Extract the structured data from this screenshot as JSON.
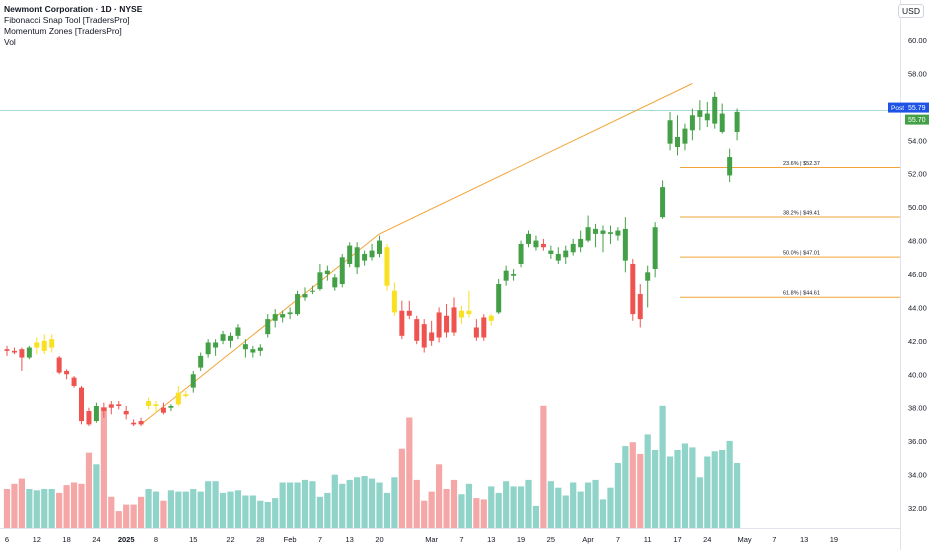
{
  "header": {
    "title": "Newmont Corporation · 1D · NYSE",
    "indicators": [
      "Fibonacci Snap Tool [TradersPro]",
      "Momentum Zones [TradersPro]",
      "Vol"
    ]
  },
  "currency_label": "USD",
  "price_badges": {
    "post_label": "Post",
    "post_value": "55.79",
    "last_value": "55.70"
  },
  "colors": {
    "up": "#43a047",
    "down": "#ef5350",
    "neutral": "#f9e020",
    "vol_up": "#8fd3c9",
    "vol_down": "#f5a6a6",
    "fib_line": "#f2a337",
    "trend_line": "#f2a337",
    "post_line": "#26a69a",
    "post_badge": "#1e53e5"
  },
  "chart_data": {
    "type": "candlestick",
    "title": "Newmont Corporation · 1D · NYSE",
    "y_ticks": [
      "32.00",
      "34.00",
      "36.00",
      "38.00",
      "40.00",
      "42.00",
      "44.00",
      "46.00",
      "48.00",
      "50.00",
      "52.00",
      "54.00",
      "56.00",
      "58.00",
      "60.00"
    ],
    "ylim": [
      30.8,
      61.2
    ],
    "x_ticks": [
      {
        "label": "6",
        "i": 0
      },
      {
        "label": "12",
        "i": 4
      },
      {
        "label": "18",
        "i": 8
      },
      {
        "label": "24",
        "i": 12
      },
      {
        "label": "2025",
        "i": 16
      },
      {
        "label": "8",
        "i": 20
      },
      {
        "label": "15",
        "i": 25
      },
      {
        "label": "22",
        "i": 30
      },
      {
        "label": "28",
        "i": 34
      },
      {
        "label": "Feb",
        "i": 38
      },
      {
        "label": "7",
        "i": 42
      },
      {
        "label": "13",
        "i": 46
      },
      {
        "label": "20",
        "i": 50
      },
      {
        "label": "Mar",
        "i": 57
      },
      {
        "label": "7",
        "i": 61
      },
      {
        "label": "13",
        "i": 65
      },
      {
        "label": "19",
        "i": 69
      },
      {
        "label": "25",
        "i": 73
      },
      {
        "label": "Apr",
        "i": 78
      },
      {
        "label": "7",
        "i": 82
      },
      {
        "label": "11",
        "i": 86
      },
      {
        "label": "17",
        "i": 90
      },
      {
        "label": "24",
        "i": 94
      },
      {
        "label": "May",
        "i": 99
      },
      {
        "label": "7",
        "i": 103
      },
      {
        "label": "13",
        "i": 107
      },
      {
        "label": "19",
        "i": 111
      }
    ],
    "candles": [
      {
        "o": 41.5,
        "h": 41.7,
        "l": 41.1,
        "c": 41.4,
        "t": "down"
      },
      {
        "o": 41.4,
        "h": 41.6,
        "l": 41.2,
        "c": 41.3,
        "t": "down"
      },
      {
        "o": 41.5,
        "h": 41.6,
        "l": 40.2,
        "c": 41.0,
        "t": "down"
      },
      {
        "o": 41.0,
        "h": 41.7,
        "l": 40.9,
        "c": 41.6,
        "t": "up"
      },
      {
        "o": 41.6,
        "h": 42.2,
        "l": 41.2,
        "c": 41.9,
        "t": "neutral"
      },
      {
        "o": 41.4,
        "h": 42.4,
        "l": 41.2,
        "c": 42.0,
        "t": "neutral"
      },
      {
        "o": 41.6,
        "h": 42.4,
        "l": 41.3,
        "c": 42.1,
        "t": "neutral"
      },
      {
        "o": 41.0,
        "h": 41.1,
        "l": 40.0,
        "c": 40.1,
        "t": "down"
      },
      {
        "o": 40.2,
        "h": 40.3,
        "l": 39.7,
        "c": 40.0,
        "t": "down"
      },
      {
        "o": 39.8,
        "h": 39.9,
        "l": 39.2,
        "c": 39.3,
        "t": "down"
      },
      {
        "o": 39.2,
        "h": 39.3,
        "l": 37.0,
        "c": 37.2,
        "t": "down"
      },
      {
        "o": 37.8,
        "h": 38.0,
        "l": 36.9,
        "c": 37.0,
        "t": "down"
      },
      {
        "o": 37.2,
        "h": 38.3,
        "l": 37.1,
        "c": 38.1,
        "t": "up"
      },
      {
        "o": 38.0,
        "h": 38.3,
        "l": 37.4,
        "c": 37.8,
        "t": "down"
      },
      {
        "o": 38.2,
        "h": 38.4,
        "l": 37.6,
        "c": 38.0,
        "t": "down"
      },
      {
        "o": 38.2,
        "h": 38.4,
        "l": 37.9,
        "c": 38.1,
        "t": "down"
      },
      {
        "o": 37.8,
        "h": 38.1,
        "l": 37.3,
        "c": 37.6,
        "t": "down"
      },
      {
        "o": 37.1,
        "h": 37.3,
        "l": 36.9,
        "c": 37.0,
        "t": "down"
      },
      {
        "o": 37.0,
        "h": 37.4,
        "l": 36.9,
        "c": 37.2,
        "t": "down"
      },
      {
        "o": 38.1,
        "h": 38.6,
        "l": 37.9,
        "c": 38.4,
        "t": "neutral"
      },
      {
        "o": 38.1,
        "h": 38.4,
        "l": 37.7,
        "c": 38.2,
        "t": "neutral"
      },
      {
        "o": 38.0,
        "h": 38.3,
        "l": 37.6,
        "c": 37.7,
        "t": "down"
      },
      {
        "o": 38.0,
        "h": 38.2,
        "l": 37.8,
        "c": 38.1,
        "t": "up"
      },
      {
        "o": 38.2,
        "h": 39.3,
        "l": 38.1,
        "c": 38.9,
        "t": "neutral"
      },
      {
        "o": 38.7,
        "h": 39.0,
        "l": 38.6,
        "c": 38.8,
        "t": "neutral"
      },
      {
        "o": 39.2,
        "h": 40.2,
        "l": 38.9,
        "c": 40.0,
        "t": "up"
      },
      {
        "o": 40.4,
        "h": 41.3,
        "l": 40.2,
        "c": 41.1,
        "t": "up"
      },
      {
        "o": 41.2,
        "h": 42.1,
        "l": 41.0,
        "c": 41.9,
        "t": "up"
      },
      {
        "o": 41.6,
        "h": 42.1,
        "l": 41.1,
        "c": 41.9,
        "t": "up"
      },
      {
        "o": 42.0,
        "h": 42.6,
        "l": 41.8,
        "c": 42.4,
        "t": "up"
      },
      {
        "o": 42.0,
        "h": 42.5,
        "l": 41.6,
        "c": 42.3,
        "t": "up"
      },
      {
        "o": 42.3,
        "h": 43.0,
        "l": 42.1,
        "c": 42.8,
        "t": "up"
      },
      {
        "o": 41.8,
        "h": 42.1,
        "l": 41.0,
        "c": 41.5,
        "t": "up"
      },
      {
        "o": 41.3,
        "h": 41.7,
        "l": 41.0,
        "c": 41.5,
        "t": "up"
      },
      {
        "o": 41.4,
        "h": 41.8,
        "l": 41.1,
        "c": 41.6,
        "t": "up"
      },
      {
        "o": 42.4,
        "h": 43.6,
        "l": 42.2,
        "c": 43.3,
        "t": "up"
      },
      {
        "o": 43.2,
        "h": 43.9,
        "l": 42.8,
        "c": 43.6,
        "t": "up"
      },
      {
        "o": 43.4,
        "h": 43.8,
        "l": 43.1,
        "c": 43.6,
        "t": "up"
      },
      {
        "o": 43.6,
        "h": 44.0,
        "l": 43.3,
        "c": 43.7,
        "t": "up"
      },
      {
        "o": 43.6,
        "h": 45.0,
        "l": 43.5,
        "c": 44.8,
        "t": "up"
      },
      {
        "o": 44.6,
        "h": 45.2,
        "l": 44.4,
        "c": 44.8,
        "t": "up"
      },
      {
        "o": 45.0,
        "h": 45.3,
        "l": 44.8,
        "c": 45.0,
        "t": "up"
      },
      {
        "o": 45.1,
        "h": 46.6,
        "l": 45.0,
        "c": 46.1,
        "t": "up"
      },
      {
        "o": 46.0,
        "h": 46.5,
        "l": 45.6,
        "c": 46.2,
        "t": "up"
      },
      {
        "o": 45.2,
        "h": 46.0,
        "l": 45.0,
        "c": 45.8,
        "t": "up"
      },
      {
        "o": 45.4,
        "h": 47.2,
        "l": 45.2,
        "c": 47.0,
        "t": "up"
      },
      {
        "o": 46.6,
        "h": 47.9,
        "l": 46.4,
        "c": 47.7,
        "t": "up"
      },
      {
        "o": 46.4,
        "h": 47.9,
        "l": 46.0,
        "c": 47.6,
        "t": "up"
      },
      {
        "o": 46.8,
        "h": 47.4,
        "l": 46.5,
        "c": 47.2,
        "t": "up"
      },
      {
        "o": 47.0,
        "h": 47.8,
        "l": 46.8,
        "c": 47.4,
        "t": "up"
      },
      {
        "o": 47.2,
        "h": 48.3,
        "l": 47.0,
        "c": 48.0,
        "t": "up"
      },
      {
        "o": 47.6,
        "h": 47.8,
        "l": 45.0,
        "c": 45.3,
        "t": "neutral"
      },
      {
        "o": 45.0,
        "h": 45.5,
        "l": 43.5,
        "c": 43.7,
        "t": "neutral"
      },
      {
        "o": 43.8,
        "h": 44.4,
        "l": 42.1,
        "c": 42.3,
        "t": "down"
      },
      {
        "o": 43.8,
        "h": 44.4,
        "l": 43.3,
        "c": 43.5,
        "t": "down"
      },
      {
        "o": 43.3,
        "h": 43.5,
        "l": 41.8,
        "c": 42.0,
        "t": "down"
      },
      {
        "o": 43.0,
        "h": 43.3,
        "l": 41.3,
        "c": 41.6,
        "t": "down"
      },
      {
        "o": 42.0,
        "h": 43.2,
        "l": 41.7,
        "c": 42.5,
        "t": "down"
      },
      {
        "o": 42.2,
        "h": 44.0,
        "l": 41.9,
        "c": 43.7,
        "t": "down"
      },
      {
        "o": 43.5,
        "h": 44.2,
        "l": 42.2,
        "c": 42.5,
        "t": "down"
      },
      {
        "o": 42.5,
        "h": 44.6,
        "l": 42.3,
        "c": 44.0,
        "t": "down"
      },
      {
        "o": 43.4,
        "h": 44.1,
        "l": 43.0,
        "c": 43.8,
        "t": "neutral"
      },
      {
        "o": 43.6,
        "h": 45.0,
        "l": 43.4,
        "c": 43.8,
        "t": "neutral"
      },
      {
        "o": 42.8,
        "h": 43.3,
        "l": 42.0,
        "c": 42.2,
        "t": "down"
      },
      {
        "o": 42.2,
        "h": 43.6,
        "l": 42.0,
        "c": 43.4,
        "t": "down"
      },
      {
        "o": 43.2,
        "h": 43.6,
        "l": 42.9,
        "c": 43.5,
        "t": "neutral"
      },
      {
        "o": 43.7,
        "h": 45.7,
        "l": 43.6,
        "c": 45.4,
        "t": "up"
      },
      {
        "o": 45.6,
        "h": 46.5,
        "l": 45.3,
        "c": 46.2,
        "t": "up"
      },
      {
        "o": 45.9,
        "h": 46.3,
        "l": 45.6,
        "c": 46.0,
        "t": "up"
      },
      {
        "o": 46.6,
        "h": 48.0,
        "l": 46.4,
        "c": 47.8,
        "t": "up"
      },
      {
        "o": 47.8,
        "h": 48.6,
        "l": 47.6,
        "c": 48.4,
        "t": "up"
      },
      {
        "o": 48.0,
        "h": 48.3,
        "l": 47.4,
        "c": 47.6,
        "t": "up"
      },
      {
        "o": 47.8,
        "h": 48.1,
        "l": 47.4,
        "c": 47.6,
        "t": "down"
      },
      {
        "o": 47.2,
        "h": 47.7,
        "l": 46.9,
        "c": 47.4,
        "t": "up"
      },
      {
        "o": 46.8,
        "h": 47.6,
        "l": 46.6,
        "c": 47.2,
        "t": "up"
      },
      {
        "o": 47.0,
        "h": 47.7,
        "l": 46.6,
        "c": 47.4,
        "t": "up"
      },
      {
        "o": 47.3,
        "h": 48.1,
        "l": 47.1,
        "c": 47.8,
        "t": "up"
      },
      {
        "o": 47.6,
        "h": 48.6,
        "l": 47.3,
        "c": 48.1,
        "t": "up"
      },
      {
        "o": 48.0,
        "h": 49.5,
        "l": 47.9,
        "c": 48.8,
        "t": "up"
      },
      {
        "o": 48.4,
        "h": 49.0,
        "l": 47.6,
        "c": 48.7,
        "t": "up"
      },
      {
        "o": 48.4,
        "h": 48.9,
        "l": 47.3,
        "c": 48.6,
        "t": "up"
      },
      {
        "o": 48.4,
        "h": 48.9,
        "l": 47.8,
        "c": 48.5,
        "t": "up"
      },
      {
        "o": 48.3,
        "h": 48.8,
        "l": 48.0,
        "c": 48.6,
        "t": "up"
      },
      {
        "o": 48.7,
        "h": 49.4,
        "l": 46.1,
        "c": 46.8,
        "t": "up"
      },
      {
        "o": 46.6,
        "h": 46.9,
        "l": 43.2,
        "c": 43.6,
        "t": "down"
      },
      {
        "o": 44.8,
        "h": 45.4,
        "l": 42.8,
        "c": 43.3,
        "t": "down"
      },
      {
        "o": 45.6,
        "h": 46.5,
        "l": 44.0,
        "c": 46.1,
        "t": "up"
      },
      {
        "o": 46.3,
        "h": 49.1,
        "l": 45.8,
        "c": 48.8,
        "t": "up"
      },
      {
        "o": 49.4,
        "h": 51.6,
        "l": 49.3,
        "c": 51.2,
        "t": "up"
      },
      {
        "o": 53.8,
        "h": 55.7,
        "l": 53.4,
        "c": 55.2,
        "t": "up"
      },
      {
        "o": 53.6,
        "h": 55.5,
        "l": 53.1,
        "c": 54.2,
        "t": "up"
      },
      {
        "o": 53.8,
        "h": 55.0,
        "l": 53.4,
        "c": 54.7,
        "t": "up"
      },
      {
        "o": 54.6,
        "h": 55.9,
        "l": 54.0,
        "c": 55.5,
        "t": "up"
      },
      {
        "o": 55.4,
        "h": 56.4,
        "l": 54.6,
        "c": 55.8,
        "t": "up"
      },
      {
        "o": 55.2,
        "h": 56.3,
        "l": 54.8,
        "c": 55.6,
        "t": "up"
      },
      {
        "o": 55.0,
        "h": 56.9,
        "l": 54.7,
        "c": 56.6,
        "t": "up"
      },
      {
        "o": 55.6,
        "h": 56.2,
        "l": 54.4,
        "c": 54.5,
        "t": "up"
      },
      {
        "o": 53.0,
        "h": 53.5,
        "l": 51.5,
        "c": 51.9,
        "t": "up"
      },
      {
        "o": 54.5,
        "h": 55.9,
        "l": 54.0,
        "c": 55.7,
        "t": "up"
      }
    ],
    "volume_relative": [
      0.3,
      0.34,
      0.38,
      0.3,
      0.29,
      0.3,
      0.3,
      0.27,
      0.33,
      0.35,
      0.34,
      0.58,
      0.49,
      0.93,
      0.24,
      0.13,
      0.18,
      0.18,
      0.24,
      0.3,
      0.28,
      0.21,
      0.29,
      0.28,
      0.28,
      0.3,
      0.28,
      0.36,
      0.36,
      0.27,
      0.28,
      0.29,
      0.25,
      0.25,
      0.21,
      0.2,
      0.23,
      0.35,
      0.35,
      0.35,
      0.37,
      0.36,
      0.24,
      0.27,
      0.41,
      0.34,
      0.37,
      0.39,
      0.4,
      0.38,
      0.35,
      0.27,
      0.39,
      0.61,
      0.85,
      0.37,
      0.21,
      0.28,
      0.49,
      0.3,
      0.37,
      0.26,
      0.34,
      0.23,
      0.22,
      0.32,
      0.27,
      0.36,
      0.32,
      0.32,
      0.37,
      0.17,
      0.94,
      0.36,
      0.31,
      0.25,
      0.35,
      0.28,
      0.35,
      0.37,
      0.22,
      0.31,
      0.5,
      0.63,
      0.66,
      0.57,
      0.72,
      0.6,
      0.94,
      0.55,
      0.6,
      0.65,
      0.62,
      0.39,
      0.55,
      0.59,
      0.6,
      0.67,
      0.5
    ],
    "fib_levels": [
      {
        "label": "23.6% | $52.37",
        "price": 52.37
      },
      {
        "label": "38.2% | $49.41",
        "price": 49.41
      },
      {
        "label": "50.0% | $47.01",
        "price": 47.01
      },
      {
        "label": "61.8% | $44.61",
        "price": 44.61
      }
    ],
    "trend_lines": [
      {
        "from": {
          "i": 18,
          "price": 37.0
        },
        "to": {
          "i": 50,
          "price": 48.4
        }
      },
      {
        "from": {
          "i": 50,
          "price": 48.4
        },
        "to": {
          "i": 92,
          "price": 57.4
        }
      }
    ],
    "post_price": 55.79
  }
}
